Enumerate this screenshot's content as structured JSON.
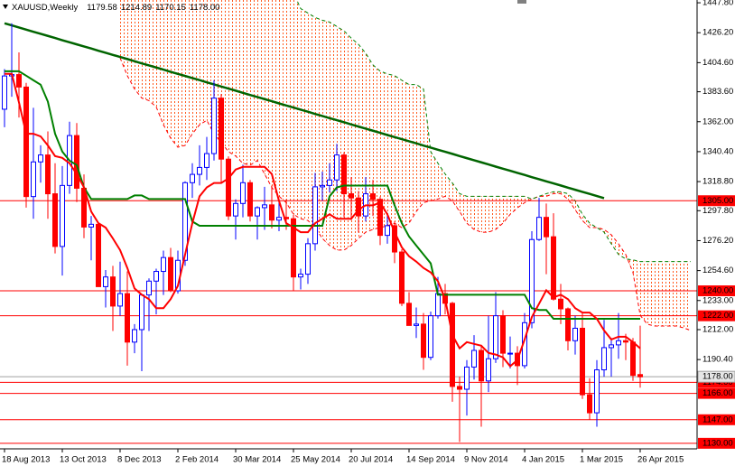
{
  "chart_data": {
    "type": "candlestick",
    "title": "XAUUSD,Weekly",
    "header_values": [
      "1179.58",
      "1214.89",
      "1170.15",
      "1178.00"
    ],
    "categories": [
      "18 Aug 2013",
      null,
      null,
      null,
      null,
      null,
      null,
      null,
      "13 Oct 2013",
      null,
      null,
      null,
      null,
      null,
      null,
      null,
      "8 Dec 2013",
      null,
      null,
      null,
      null,
      null,
      null,
      null,
      "2 Feb 2014",
      null,
      null,
      null,
      null,
      null,
      null,
      null,
      "30 Mar 2014",
      null,
      null,
      null,
      null,
      null,
      null,
      null,
      "25 May 2014",
      null,
      null,
      null,
      null,
      null,
      null,
      null,
      "20 Jul 2014",
      null,
      null,
      null,
      null,
      null,
      null,
      null,
      "14 Sep 2014",
      null,
      null,
      null,
      null,
      null,
      null,
      null,
      "9 Nov 2014",
      null,
      null,
      null,
      null,
      null,
      null,
      null,
      "4 Jan 2015",
      null,
      null,
      null,
      null,
      null,
      null,
      null,
      "1 Mar 2015",
      null,
      null,
      null,
      null,
      null,
      null,
      null,
      "26 Apr 2015",
      null,
      null,
      null,
      null,
      null,
      null,
      null
    ],
    "open": [
      1371,
      1395,
      1396,
      1387,
      1308,
      1333,
      1338,
      1310,
      1272,
      1316,
      1352,
      1314,
      1286,
      1288,
      1243,
      1250,
      1229,
      1238,
      1203,
      1212,
      1237,
      1247,
      1254,
      1264,
      1240,
      1262,
      1318,
      1324,
      1329,
      1339,
      1379,
      1335,
      1294,
      1303,
      1318,
      1294,
      1300,
      1302,
      1291,
      1293,
      1292,
      1250,
      1252,
      1274,
      1315,
      1316,
      1320,
      1338,
      1310,
      1307,
      1294,
      1310,
      1306,
      1280,
      1287,
      1268,
      1231,
      1215,
      1216,
      1192,
      1222,
      1238,
      1231,
      1171,
      1169,
      1185,
      1197,
      1175,
      1191,
      1222,
      1195,
      1195,
      1186,
      1217,
      1277,
      1293,
      1279,
      1234,
      1227,
      1204,
      1213,
      1165,
      1152,
      1183,
      1199,
      1201,
      1204,
      1203,
      1179.58,
      null,
      null,
      null,
      null,
      null,
      null,
      null
    ],
    "high": [
      1400,
      1433,
      1412,
      1390,
      1372,
      1345,
      1355,
      1332,
      1330,
      1362,
      1361,
      1324,
      1294,
      1289,
      1255,
      1258,
      1261,
      1254,
      1216,
      1238,
      1249,
      1256,
      1269,
      1271,
      1269,
      1319,
      1332,
      1345,
      1351,
      1392,
      1382,
      1337,
      1306,
      1331,
      1320,
      1301,
      1315,
      1316,
      1305,
      1306,
      1295,
      1256,
      1278,
      1325,
      1326,
      1332,
      1346,
      1340,
      1322,
      1312,
      1322,
      1320,
      1308,
      1295,
      1290,
      1270,
      1239,
      1228,
      1224,
      1225,
      1250,
      1245,
      1232,
      1178,
      1190,
      1208,
      1201,
      1222,
      1239,
      1226,
      1207,
      1200,
      1224,
      1283,
      1307,
      1303,
      1296,
      1245,
      1228,
      1222,
      1224,
      1177,
      1190,
      1219,
      1206,
      1224,
      1209,
      1206,
      1214.89,
      null,
      null,
      null,
      null,
      null,
      null,
      null
    ],
    "low": [
      1358,
      1380,
      1365,
      1300,
      1292,
      1318,
      1292,
      1267,
      1251,
      1310,
      1304,
      1278,
      1262,
      1243,
      1228,
      1211,
      1222,
      1186,
      1195,
      1182,
      1211,
      1223,
      1237,
      1239,
      1238,
      1258,
      1307,
      1316,
      1320,
      1334,
      1318,
      1291,
      1277,
      1293,
      1290,
      1277,
      1284,
      1285,
      1283,
      1284,
      1240,
      1241,
      1245,
      1269,
      1305,
      1311,
      1312,
      1293,
      1291,
      1282,
      1290,
      1294,
      1273,
      1274,
      1260,
      1229,
      1215,
      1206,
      1183,
      1190,
      1220,
      1223,
      1160,
      1131,
      1150,
      1176,
      1142,
      1167,
      1188,
      1185,
      1184,
      1172,
      1184,
      1213,
      1276,
      1252,
      1233,
      1216,
      1197,
      1194,
      1162,
      1147,
      1142,
      1178,
      1178,
      1191,
      1190,
      1175,
      1170.15,
      null,
      null,
      null,
      null,
      null,
      null,
      null
    ],
    "close": [
      1395,
      1396,
      1387,
      1308,
      1333,
      1338,
      1310,
      1272,
      1316,
      1352,
      1314,
      1286,
      1288,
      1243,
      1250,
      1229,
      1238,
      1203,
      1212,
      1237,
      1247,
      1254,
      1264,
      1240,
      1262,
      1318,
      1324,
      1329,
      1339,
      1379,
      1335,
      1294,
      1303,
      1318,
      1294,
      1300,
      1302,
      1291,
      1293,
      1292,
      1250,
      1252,
      1274,
      1315,
      1316,
      1320,
      1338,
      1310,
      1307,
      1294,
      1310,
      1306,
      1280,
      1287,
      1268,
      1231,
      1215,
      1216,
      1192,
      1222,
      1238,
      1231,
      1171,
      1169,
      1185,
      1197,
      1175,
      1191,
      1222,
      1195,
      1195,
      1186,
      1217,
      1277,
      1293,
      1279,
      1234,
      1227,
      1204,
      1213,
      1165,
      1152,
      1183,
      1199,
      1201,
      1204,
      1203,
      1179,
      1178,
      null,
      null,
      null,
      null,
      null,
      null,
      null
    ],
    "up_color": "#0000ff",
    "down_color": "#ff0000",
    "cloud": {
      "color": "#ff5a1e",
      "span_a_color": "#ff0000",
      "span_b_color": "#008000",
      "span_a": [
        null,
        null,
        null,
        null,
        null,
        null,
        null,
        null,
        null,
        null,
        null,
        null,
        null,
        null,
        null,
        null,
        1408.1,
        1395.2,
        1385.6,
        1379.1,
        1377.2,
        1372.7,
        1359.8,
        1350.1,
        1343.6,
        1344.9,
        1353.3,
        1359.8,
        1363.0,
        1353.3,
        1346.9,
        1340.4,
        1337.2,
        1332.0,
        1330.7,
        1334.0,
        1324.3,
        1314.6,
        1308.2,
        1303.6,
        1295.2,
        1292.0,
        1290.7,
        1285.6,
        1277.8,
        1272.7,
        1269.4,
        1269.4,
        1272.7,
        1277.8,
        1282.3,
        1284.3,
        1285.6,
        1286.9,
        1288.8,
        1285.6,
        1288.8,
        1297.2,
        1303.6,
        1304.9,
        1306.2,
        1308.2,
        1304.9,
        1297.2,
        1288.8,
        1284.3,
        1282.3,
        1282.3,
        1284.3,
        1288.8,
        1295.2,
        1299.8,
        1303.6,
        1306.2,
        1308.2,
        1308.2,
        1310.1,
        1310.1,
        1306.2,
        1298.5,
        1290.7,
        1285.6,
        1285.6,
        1284.3,
        1280.4,
        1273.9,
        1266.2,
        1253.3,
        1222.3,
        1215.9,
        1214.6,
        1214.6,
        1214.6,
        1214.6,
        1213.3,
        1211.4
      ],
      "span_b": [
        null,
        null,
        null,
        null,
        null,
        null,
        null,
        null,
        null,
        null,
        null,
        null,
        null,
        null,
        null,
        null,
        1455,
        1455,
        1455,
        1455,
        1455,
        1455,
        1455,
        1455,
        1455,
        1455,
        1455,
        1455,
        1455,
        1455,
        1455,
        1455,
        1455,
        1455,
        1455,
        1455,
        1455,
        1455,
        1455,
        1455,
        1455,
        1443.6,
        1440.4,
        1437.2,
        1435.2,
        1433.9,
        1430.7,
        1427.5,
        1422.3,
        1417.8,
        1411.4,
        1403.0,
        1398.5,
        1396.5,
        1395.2,
        1391.9,
        1388.8,
        1388.8,
        1385.6,
        1340.4,
        1332.0,
        1324.3,
        1317.8,
        1310.1,
        1308.2,
        1308.2,
        1308.2,
        1308.2,
        1308.2,
        1308.2,
        1308.2,
        1308.2,
        1308.2,
        1306.2,
        1308.2,
        1310.1,
        1311.4,
        1311.4,
        1310.1,
        1305.0,
        1295.2,
        1288.8,
        1285.6,
        1282.3,
        1273.9,
        1266.2,
        1263.0,
        1262.3,
        1261.1,
        1261.1,
        1261.1,
        1261.1,
        1261.1,
        1261.1,
        1261.1,
        1261.1
      ]
    },
    "lines": [
      {
        "color": "#006400",
        "values": [
          1433.0,
          1431.5,
          1430.0,
          1428.4,
          1426.9,
          1425.4,
          1423.9,
          1422.4,
          1420.8,
          1419.3,
          1417.8,
          1416.3,
          1414.8,
          1413.2,
          1411.7,
          1410.2,
          1408.7,
          1407.2,
          1405.6,
          1404.1,
          1402.6,
          1401.1,
          1399.6,
          1398.0,
          1396.5,
          1395.0,
          1393.5,
          1392.0,
          1390.4,
          1388.9,
          1387.4,
          1385.9,
          1384.4,
          1382.8,
          1381.3,
          1379.8,
          1378.3,
          1376.8,
          1375.2,
          1373.7,
          1372.2,
          1370.7,
          1369.2,
          1367.6,
          1366.1,
          1364.6,
          1363.1,
          1361.6,
          1360.0,
          1358.5,
          1357.0,
          1355.5,
          1354.0,
          1352.4,
          1350.9,
          1349.4,
          1347.9,
          1346.4,
          1344.8,
          1343.3,
          1341.8,
          1340.3,
          1338.8,
          1337.2,
          1335.7,
          1334.2,
          1332.7,
          1331.2,
          1329.6,
          1328.1,
          1326.6,
          1325.1,
          1323.6,
          1322.0,
          1320.5,
          1319.0,
          1317.5,
          1316.0,
          1314.4,
          1312.9,
          1311.4,
          1309.9,
          1308.4,
          1306.8,
          null,
          null,
          null,
          null,
          null,
          null,
          null,
          null,
          null,
          null,
          null,
          null
        ]
      },
      {
        "color": "#008000",
        "values": [
          1398.4,
          1398.4,
          1398.4,
          1395.2,
          1391.9,
          1388.7,
          1376.5,
          1353.3,
          1340.4,
          1333.9,
          1330.7,
          1314.6,
          1306.2,
          1306.2,
          1306.2,
          1306.2,
          1306.2,
          1306.2,
          1308.8,
          1308.8,
          1306.2,
          1306.2,
          1306.2,
          1306.2,
          1306.2,
          1306.2,
          1290.0,
          1286.9,
          1286.9,
          1286.9,
          1286.9,
          1286.9,
          1286.9,
          1286.9,
          1286.9,
          1286.9,
          1286.9,
          1286.9,
          1286.9,
          1286.9,
          1286.9,
          1286.9,
          1286.9,
          1286.9,
          1286.9,
          1308.2,
          1314.6,
          1315.9,
          1315.9,
          1315.9,
          1315.9,
          1315.9,
          1315.9,
          1315.9,
          1301.7,
          1288.8,
          1279.2,
          1272.7,
          1266.2,
          1259.8,
          1237.2,
          1237.2,
          1237.2,
          1237.2,
          1237.2,
          1237.2,
          1237.2,
          1237.2,
          1237.2,
          1237.2,
          1237.2,
          1237.2,
          1237.2,
          1227.5,
          1226.2,
          1226.2,
          1219.8,
          1219.8,
          1219.8,
          1219.8,
          1219.8,
          1219.8,
          1219.8,
          1219.8,
          1219.8,
          1219.8,
          1219.8,
          1219.8,
          1219.8,
          null,
          null,
          null,
          null,
          null,
          null,
          null
        ]
      },
      {
        "color": "#ff0000",
        "values": [
          1396.5,
          1396.5,
          1375.9,
          1353.3,
          1353.3,
          1351.4,
          1344.9,
          1337.2,
          1335.9,
          1332.0,
          1324.3,
          1314.6,
          1297.2,
          1288.8,
          1285.6,
          1277.8,
          1269.4,
          1256.5,
          1241.7,
          1237.2,
          1234.0,
          1227.5,
          1227.5,
          1234.0,
          1243.6,
          1266.2,
          1288.8,
          1308.2,
          1314.6,
          1317.8,
          1317.8,
          1321.1,
          1327.5,
          1329.4,
          1329.4,
          1329.4,
          1329.4,
          1324.3,
          1304.9,
          1288.8,
          1285.6,
          1282.3,
          1282.3,
          1288.8,
          1292.0,
          1295.2,
          1292.0,
          1292.0,
          1292.0,
          1298.5,
          1301.7,
          1301.7,
          1303.6,
          1295.2,
          1282.3,
          1271.4,
          1264.9,
          1261.1,
          1256.5,
          1253.3,
          1246.9,
          1234.0,
          1208.1,
          1198.5,
          1203.0,
          1201.7,
          1200.4,
          1195.2,
          1194.0,
          1192.0,
          1185.6,
          1190.1,
          1204.9,
          1221.1,
          1230.7,
          1240.4,
          1235.2,
          1237.2,
          1234.0,
          1227.5,
          1224.3,
          1224.3,
          1219.8,
          1211.4,
          1204.9,
          1206.9,
          1206.9,
          1203.0,
          1198.5,
          null,
          null,
          null,
          null,
          null,
          null,
          null
        ]
      }
    ],
    "levels": [
      {
        "value": 1305,
        "label": "1305.00"
      },
      {
        "value": 1240,
        "label": "1240.00"
      },
      {
        "value": 1222,
        "label": "1222.00"
      },
      {
        "value": 1174,
        "label": "1174.00"
      },
      {
        "value": 1166,
        "label": "1166.00"
      },
      {
        "value": 1147,
        "label": "1147.00"
      },
      {
        "value": 1130,
        "label": "1130.00"
      }
    ],
    "level_color": "#ff0000",
    "last_price": {
      "value": 1178,
      "label": "1178.00"
    },
    "ylim": [
      1126,
      1449.8
    ],
    "yticks": [
      {
        "value": 1447.8,
        "label": "1447.80"
      },
      {
        "value": 1426.2,
        "label": "1426.20"
      },
      {
        "value": 1404.6,
        "label": "1404.60"
      },
      {
        "value": 1383.6,
        "label": "1383.60"
      },
      {
        "value": 1362,
        "label": "1362.00"
      },
      {
        "value": 1340.4,
        "label": "1340.40"
      },
      {
        "value": 1318.8,
        "label": "1318.80"
      },
      {
        "value": 1297.8,
        "label": "1297.80"
      },
      {
        "value": 1276.2,
        "label": "1276.20"
      },
      {
        "value": 1254.6,
        "label": "1254.60"
      },
      {
        "value": 1233,
        "label": "1233.00"
      },
      {
        "value": 1212,
        "label": "1212.00"
      },
      {
        "value": 1190.4,
        "label": "1190.40"
      }
    ],
    "grid": false
  }
}
